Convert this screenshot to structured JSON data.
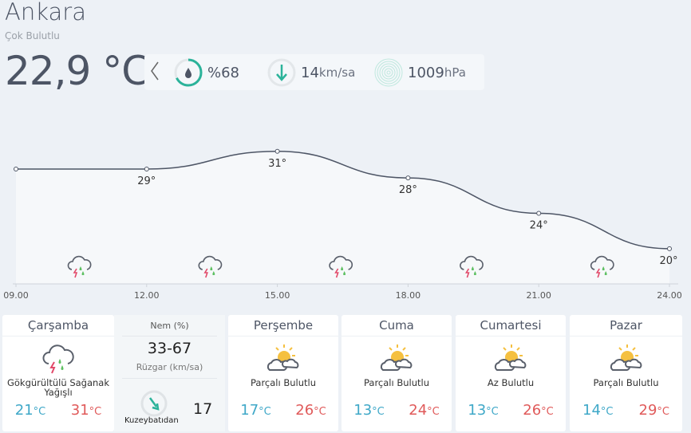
{
  "location": {
    "city": "Ankara",
    "condition": "Çok Bulutlu",
    "temperature": "22,9 °C"
  },
  "stats": {
    "humidity": "%68",
    "humidity_percent": 68,
    "wind_value": "14",
    "wind_unit": "km/sa",
    "pressure_value": "1009",
    "pressure_unit": "hPa",
    "back_icon": "chevron-left-icon"
  },
  "chart_data": {
    "type": "line",
    "x": [
      "09.00",
      "12.00",
      "15.00",
      "18.00",
      "21.00",
      "24.00"
    ],
    "values": [
      29,
      29,
      31,
      28,
      24,
      20
    ],
    "data_labels": [
      "",
      "29°",
      "31°",
      "28°",
      "24°",
      "20°"
    ],
    "icons": [
      "thunderstorm-rain",
      "thunderstorm-rain",
      "thunderstorm-rain",
      "thunderstorm-rain",
      "thunderstorm-rain"
    ],
    "line_color": "#4d5565"
  },
  "today": {
    "day": "Çarşamba",
    "desc": "Gökgürültülü Sağanak Yağışlı",
    "low": "21",
    "high": "31",
    "unit": "°C",
    "humidity_label": "Nem (%)",
    "humidity_range": "33-67",
    "wind_label": "Rüzgar (km/sa)",
    "wind_dir": "Kuzeybatıdan",
    "wind_speed": "17"
  },
  "forecast": [
    {
      "day": "Perşembe",
      "desc": "Parçalı Bulutlu",
      "low": "17",
      "high": "26",
      "unit": "°C"
    },
    {
      "day": "Cuma",
      "desc": "Parçalı Bulutlu",
      "low": "13",
      "high": "24",
      "unit": "°C"
    },
    {
      "day": "Cumartesi",
      "desc": "Az Bulutlu",
      "low": "13",
      "high": "26",
      "unit": "°C"
    },
    {
      "day": "Pazar",
      "desc": "Parçalı Bulutlu",
      "low": "14",
      "high": "29",
      "unit": "°C"
    }
  ],
  "colors": {
    "accent": "#2bb39a",
    "low": "#3fa8c8",
    "high": "#e05a5a",
    "sun": "#f5c040"
  }
}
